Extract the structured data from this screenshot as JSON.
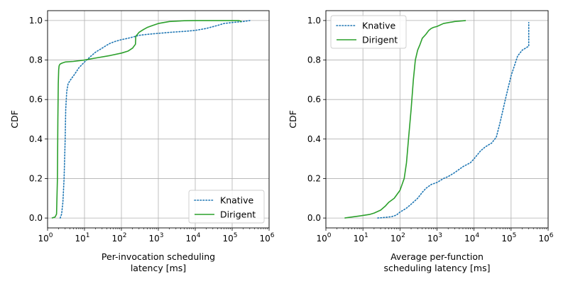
{
  "chart_data": [
    {
      "type": "line",
      "subtype": "cdf",
      "title": "",
      "xlabel": [
        "Per-invocation scheduling",
        "latency [ms]"
      ],
      "ylabel": "CDF",
      "xscale": "log",
      "xlim": [
        1,
        1000000
      ],
      "ylim": [
        -0.05,
        1.05
      ],
      "xticks": [
        1,
        10,
        100,
        1000,
        10000,
        100000,
        1000000
      ],
      "xtick_base": "10",
      "xtick_exponents": [
        "0",
        "1",
        "2",
        "3",
        "4",
        "5",
        "6"
      ],
      "yticks": [
        "0.0",
        "0.2",
        "0.4",
        "0.6",
        "0.8",
        "1.0"
      ],
      "grid": true,
      "legend_position": "lower-right",
      "series": [
        {
          "name": "Knative",
          "color": "#1f77b4",
          "style": "dotted",
          "x": [
            2.2,
            2.4,
            2.6,
            2.8,
            3.0,
            3.1,
            3.3,
            3.6,
            4.2,
            5.5,
            7,
            10,
            15,
            20,
            30,
            40,
            50,
            70,
            100,
            150,
            200,
            300,
            500,
            1000,
            2000,
            5000,
            10000,
            20000,
            40000,
            60000,
            100000,
            200000,
            300000
          ],
          "y": [
            0.0,
            0.02,
            0.08,
            0.2,
            0.4,
            0.55,
            0.64,
            0.68,
            0.7,
            0.73,
            0.76,
            0.79,
            0.82,
            0.84,
            0.86,
            0.875,
            0.885,
            0.895,
            0.903,
            0.91,
            0.916,
            0.925,
            0.93,
            0.935,
            0.94,
            0.945,
            0.95,
            0.96,
            0.975,
            0.985,
            0.99,
            0.995,
            1.0
          ]
        },
        {
          "name": "Dirigent",
          "color": "#2ca02c",
          "style": "solid",
          "x": [
            1.3,
            1.6,
            1.75,
            1.85,
            1.9,
            1.95,
            2.0,
            2.05,
            2.1,
            2.2,
            2.5,
            3.0,
            5,
            10,
            20,
            50,
            100,
            150,
            200,
            240,
            245,
            300,
            400,
            500,
            700,
            1000,
            2000,
            5000,
            10000,
            50000,
            100000,
            150000,
            180000
          ],
          "y": [
            0.0,
            0.005,
            0.02,
            0.2,
            0.5,
            0.68,
            0.75,
            0.77,
            0.775,
            0.78,
            0.785,
            0.79,
            0.793,
            0.8,
            0.81,
            0.823,
            0.835,
            0.845,
            0.86,
            0.88,
            0.92,
            0.94,
            0.955,
            0.965,
            0.975,
            0.985,
            0.995,
            0.999,
            1.0,
            1.0,
            1.0,
            1.0,
            0.995
          ]
        }
      ]
    },
    {
      "type": "line",
      "subtype": "cdf",
      "title": "",
      "xlabel": [
        "Average per-function",
        "scheduling latency [ms]"
      ],
      "ylabel": "CDF",
      "xscale": "log",
      "xlim": [
        1,
        1000000
      ],
      "ylim": [
        -0.05,
        1.05
      ],
      "xticks": [
        1,
        10,
        100,
        1000,
        10000,
        100000,
        1000000
      ],
      "xtick_base": "10",
      "xtick_exponents": [
        "0",
        "1",
        "2",
        "3",
        "4",
        "5",
        "6"
      ],
      "yticks": [
        "0.0",
        "0.2",
        "0.4",
        "0.6",
        "0.8",
        "1.0"
      ],
      "grid": true,
      "legend_position": "upper-left",
      "series": [
        {
          "name": "Knative",
          "color": "#1f77b4",
          "style": "dotted",
          "x": [
            25,
            40,
            60,
            80,
            100,
            150,
            200,
            300,
            400,
            500,
            700,
            1000,
            1500,
            2000,
            3000,
            5000,
            8000,
            10000,
            15000,
            20000,
            30000,
            40000,
            50000,
            70000,
            100000,
            150000,
            200000,
            300000,
            300000
          ],
          "y": [
            0.0,
            0.003,
            0.007,
            0.015,
            0.03,
            0.05,
            0.07,
            0.1,
            0.13,
            0.15,
            0.17,
            0.18,
            0.2,
            0.21,
            0.23,
            0.26,
            0.28,
            0.3,
            0.34,
            0.36,
            0.38,
            0.41,
            0.48,
            0.6,
            0.72,
            0.82,
            0.85,
            0.87,
            0.99
          ]
        },
        {
          "name": "Dirigent",
          "color": "#2ca02c",
          "style": "solid",
          "x": [
            3.2,
            5,
            10,
            15,
            20,
            30,
            40,
            50,
            70,
            100,
            130,
            150,
            170,
            200,
            230,
            260,
            300,
            350,
            400,
            500,
            600,
            700,
            800,
            1000,
            1500,
            3000,
            6000
          ],
          "y": [
            0.0,
            0.005,
            0.013,
            0.018,
            0.025,
            0.04,
            0.06,
            0.08,
            0.1,
            0.14,
            0.2,
            0.28,
            0.4,
            0.55,
            0.7,
            0.8,
            0.85,
            0.88,
            0.91,
            0.93,
            0.95,
            0.96,
            0.965,
            0.97,
            0.985,
            0.995,
            1.0
          ]
        }
      ]
    }
  ]
}
